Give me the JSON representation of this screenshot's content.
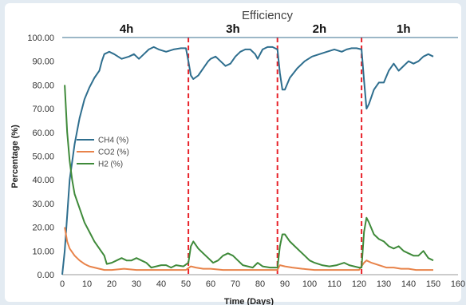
{
  "chart_data": {
    "type": "line",
    "title": "Efficiency",
    "xlabel": "Time (Days)",
    "ylabel": "Percentage (%)",
    "xlim": [
      0,
      160
    ],
    "ylim": [
      0,
      100
    ],
    "xticks": [
      0,
      10,
      20,
      30,
      40,
      50,
      60,
      70,
      80,
      90,
      100,
      110,
      120,
      130,
      140,
      150,
      160
    ],
    "yticks": [
      "0.00",
      "10.00",
      "20.00",
      "30.00",
      "40.00",
      "50.00",
      "60.00",
      "70.00",
      "80.00",
      "90.00",
      "100.00"
    ],
    "grid": false,
    "legend_position": "left-middle",
    "phase_boundaries": [
      51,
      87,
      121
    ],
    "phases": [
      {
        "label": "4h",
        "x": 26
      },
      {
        "label": "3h",
        "x": 69
      },
      {
        "label": "2h",
        "x": 104
      },
      {
        "label": "1h",
        "x": 138
      }
    ],
    "series": [
      {
        "name": "CH4 (%)",
        "color": "#2e6e8e",
        "points": [
          [
            0,
            0
          ],
          [
            1,
            10
          ],
          [
            2,
            25
          ],
          [
            3,
            40
          ],
          [
            5,
            55
          ],
          [
            7,
            66
          ],
          [
            9,
            74
          ],
          [
            11,
            79
          ],
          [
            13,
            83
          ],
          [
            15,
            86
          ],
          [
            16,
            90
          ],
          [
            17,
            93
          ],
          [
            19,
            94
          ],
          [
            21,
            93
          ],
          [
            24,
            91
          ],
          [
            27,
            92
          ],
          [
            29,
            93
          ],
          [
            31,
            91
          ],
          [
            33,
            93
          ],
          [
            35,
            95
          ],
          [
            37,
            96
          ],
          [
            39,
            95
          ],
          [
            42,
            94
          ],
          [
            45,
            95
          ],
          [
            48,
            95.5
          ],
          [
            50,
            95.5
          ],
          [
            51,
            90
          ],
          [
            52,
            84
          ],
          [
            53,
            82.5
          ],
          [
            55,
            84
          ],
          [
            57,
            87
          ],
          [
            59,
            90
          ],
          [
            60,
            91
          ],
          [
            62,
            92
          ],
          [
            64,
            90
          ],
          [
            66,
            88
          ],
          [
            68,
            89
          ],
          [
            70,
            92
          ],
          [
            72,
            94
          ],
          [
            74,
            95
          ],
          [
            76,
            95
          ],
          [
            78,
            93
          ],
          [
            79,
            91
          ],
          [
            81,
            95
          ],
          [
            83,
            96
          ],
          [
            85,
            96
          ],
          [
            87,
            95
          ],
          [
            88,
            85
          ],
          [
            89,
            78
          ],
          [
            90,
            78
          ],
          [
            92,
            83
          ],
          [
            95,
            87
          ],
          [
            98,
            90
          ],
          [
            101,
            92
          ],
          [
            104,
            93
          ],
          [
            107,
            94
          ],
          [
            110,
            95
          ],
          [
            113,
            94
          ],
          [
            115,
            95
          ],
          [
            117,
            95.5
          ],
          [
            119,
            95.5
          ],
          [
            121,
            95
          ],
          [
            122,
            82
          ],
          [
            123,
            70
          ],
          [
            124,
            72
          ],
          [
            126,
            78
          ],
          [
            128,
            81
          ],
          [
            130,
            81
          ],
          [
            132,
            86
          ],
          [
            134,
            89
          ],
          [
            136,
            86
          ],
          [
            138,
            88
          ],
          [
            140,
            90
          ],
          [
            142,
            89
          ],
          [
            144,
            90
          ],
          [
            146,
            92
          ],
          [
            148,
            93
          ],
          [
            150,
            92
          ]
        ]
      },
      {
        "name": "CO2 (%)",
        "color": "#e8834a",
        "points": [
          [
            1,
            20
          ],
          [
            2,
            14
          ],
          [
            3,
            11
          ],
          [
            5,
            8
          ],
          [
            7,
            6
          ],
          [
            9,
            4.5
          ],
          [
            11,
            3.5
          ],
          [
            13,
            3
          ],
          [
            15,
            2.5
          ],
          [
            17,
            2
          ],
          [
            20,
            2
          ],
          [
            25,
            2.5
          ],
          [
            30,
            2
          ],
          [
            35,
            2
          ],
          [
            40,
            2
          ],
          [
            45,
            2
          ],
          [
            50,
            2
          ],
          [
            52,
            3.5
          ],
          [
            54,
            3
          ],
          [
            57,
            2.5
          ],
          [
            60,
            2.5
          ],
          [
            65,
            2
          ],
          [
            70,
            2
          ],
          [
            75,
            2
          ],
          [
            80,
            2
          ],
          [
            85,
            2
          ],
          [
            87,
            2
          ],
          [
            88,
            4
          ],
          [
            90,
            3.5
          ],
          [
            93,
            3
          ],
          [
            97,
            2.5
          ],
          [
            102,
            2
          ],
          [
            107,
            2
          ],
          [
            112,
            2
          ],
          [
            117,
            2
          ],
          [
            120,
            2
          ],
          [
            122,
            5
          ],
          [
            123,
            6
          ],
          [
            125,
            5
          ],
          [
            128,
            4
          ],
          [
            131,
            3
          ],
          [
            134,
            3
          ],
          [
            137,
            2.5
          ],
          [
            140,
            2.5
          ],
          [
            143,
            2
          ],
          [
            146,
            2
          ],
          [
            150,
            2
          ]
        ]
      },
      {
        "name": "H2 (%)",
        "color": "#3f8a3a",
        "points": [
          [
            1,
            80
          ],
          [
            2,
            60
          ],
          [
            3,
            48
          ],
          [
            4,
            40
          ],
          [
            5,
            34
          ],
          [
            7,
            28
          ],
          [
            9,
            22
          ],
          [
            11,
            18
          ],
          [
            13,
            14
          ],
          [
            15,
            11
          ],
          [
            17,
            8
          ],
          [
            18,
            4.5
          ],
          [
            20,
            5
          ],
          [
            22,
            6
          ],
          [
            24,
            7
          ],
          [
            26,
            6
          ],
          [
            28,
            6
          ],
          [
            30,
            7
          ],
          [
            32,
            6
          ],
          [
            34,
            5
          ],
          [
            36,
            3
          ],
          [
            38,
            3.5
          ],
          [
            40,
            4
          ],
          [
            42,
            4
          ],
          [
            44,
            3
          ],
          [
            46,
            4
          ],
          [
            49,
            3.5
          ],
          [
            51,
            5
          ],
          [
            52,
            12
          ],
          [
            53,
            14
          ],
          [
            55,
            11
          ],
          [
            57,
            9
          ],
          [
            59,
            7
          ],
          [
            61,
            5
          ],
          [
            63,
            6
          ],
          [
            65,
            8
          ],
          [
            67,
            9
          ],
          [
            69,
            8
          ],
          [
            71,
            6
          ],
          [
            73,
            4
          ],
          [
            75,
            3.5
          ],
          [
            77,
            3
          ],
          [
            79,
            5
          ],
          [
            81,
            3.5
          ],
          [
            84,
            3
          ],
          [
            87,
            3
          ],
          [
            88,
            12
          ],
          [
            89,
            17
          ],
          [
            90,
            17
          ],
          [
            92,
            14
          ],
          [
            94,
            12
          ],
          [
            96,
            10
          ],
          [
            98,
            8
          ],
          [
            100,
            6
          ],
          [
            102,
            5
          ],
          [
            105,
            4
          ],
          [
            108,
            3.5
          ],
          [
            111,
            4
          ],
          [
            114,
            5
          ],
          [
            116,
            4
          ],
          [
            118,
            3.5
          ],
          [
            120,
            3
          ],
          [
            121,
            3
          ],
          [
            122,
            18
          ],
          [
            123,
            24
          ],
          [
            124,
            22
          ],
          [
            126,
            17
          ],
          [
            128,
            15
          ],
          [
            130,
            14
          ],
          [
            132,
            12
          ],
          [
            134,
            11
          ],
          [
            136,
            12
          ],
          [
            138,
            10
          ],
          [
            140,
            9
          ],
          [
            142,
            8
          ],
          [
            144,
            8
          ],
          [
            146,
            10
          ],
          [
            148,
            7
          ],
          [
            150,
            6
          ]
        ]
      }
    ]
  }
}
